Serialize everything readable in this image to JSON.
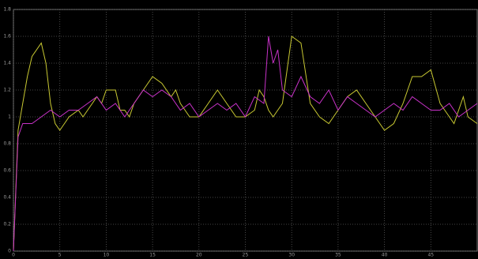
{
  "chart_data": {
    "type": "line",
    "xlim": [
      0,
      50
    ],
    "ylim": [
      0,
      1.8
    ],
    "xticks": [
      0,
      5,
      10,
      15,
      20,
      25,
      30,
      35,
      40,
      45
    ],
    "yticks": [
      0,
      0.2,
      0.4,
      0.6,
      0.8,
      1,
      1.2,
      1.4,
      1.6,
      1.8
    ],
    "grid": true,
    "series": [
      {
        "color": "#c8c832",
        "x": [
          0,
          0.5,
          1.5,
          2,
          3,
          3.5,
          4,
          4.5,
          5,
          5.5,
          6,
          7,
          7.5,
          8.5,
          9,
          9.5,
          10,
          11,
          11.5,
          12,
          12.5,
          13,
          14,
          15,
          16,
          17,
          17.5,
          18,
          19,
          20,
          21,
          22,
          23,
          24,
          25,
          26,
          26.5,
          27,
          27.5,
          28,
          29,
          29.5,
          30,
          31,
          32,
          33,
          34,
          35,
          36,
          37,
          38,
          39,
          40,
          41,
          42,
          43,
          44,
          45,
          46,
          47,
          47.5,
          48,
          48.5,
          49,
          50
        ],
        "values": [
          0,
          0.9,
          1.3,
          1.45,
          1.55,
          1.4,
          1.1,
          0.95,
          0.9,
          0.95,
          1.0,
          1.05,
          1.0,
          1.1,
          1.15,
          1.1,
          1.2,
          1.2,
          1.05,
          1.05,
          1.0,
          1.1,
          1.2,
          1.3,
          1.25,
          1.15,
          1.2,
          1.1,
          1.0,
          1.0,
          1.1,
          1.2,
          1.1,
          1.0,
          1.0,
          1.05,
          1.2,
          1.15,
          1.05,
          1.0,
          1.1,
          1.35,
          1.6,
          1.55,
          1.1,
          1.0,
          0.95,
          1.05,
          1.15,
          1.2,
          1.1,
          1.0,
          0.9,
          0.95,
          1.1,
          1.3,
          1.3,
          1.35,
          1.1,
          1.0,
          0.95,
          1.05,
          1.15,
          1.0,
          0.95
        ]
      },
      {
        "color": "#c832c8",
        "x": [
          0,
          0.5,
          1,
          2,
          3,
          4,
          5,
          6,
          7,
          8,
          9,
          10,
          11,
          12,
          13,
          14,
          15,
          16,
          17,
          18,
          19,
          20,
          21,
          22,
          23,
          24,
          25,
          26,
          27,
          27.5,
          28,
          28.5,
          29,
          30,
          31,
          32,
          33,
          34,
          35,
          36,
          37,
          38,
          39,
          40,
          41,
          42,
          43,
          44,
          45,
          46,
          47,
          48,
          49,
          50
        ],
        "values": [
          0,
          0.85,
          0.95,
          0.95,
          1.0,
          1.05,
          1.0,
          1.05,
          1.05,
          1.1,
          1.15,
          1.05,
          1.1,
          1.0,
          1.1,
          1.2,
          1.15,
          1.2,
          1.15,
          1.05,
          1.1,
          1.0,
          1.05,
          1.1,
          1.05,
          1.1,
          1.0,
          1.15,
          1.1,
          1.6,
          1.4,
          1.5,
          1.2,
          1.15,
          1.3,
          1.15,
          1.1,
          1.2,
          1.05,
          1.15,
          1.1,
          1.05,
          1.0,
          1.05,
          1.1,
          1.05,
          1.15,
          1.1,
          1.05,
          1.05,
          1.1,
          1.0,
          1.05,
          1.1
        ]
      }
    ]
  }
}
